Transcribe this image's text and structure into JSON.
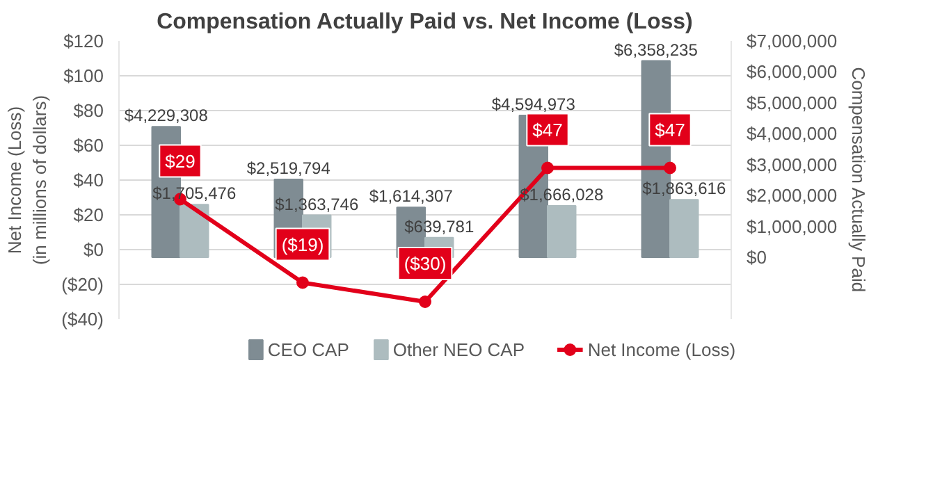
{
  "chart_data": {
    "type": "bar",
    "title": "Compensation Actually Paid vs. Net Income (Loss)",
    "ylabel": "Net Income (Loss)\n(in millions of dollars)",
    "y2label": "Compensation Actually Paid",
    "categories": [
      null,
      null,
      null,
      null,
      null
    ],
    "ylim": [
      -40,
      120
    ],
    "yticks": [
      {
        "value": -40,
        "label": "($40)"
      },
      {
        "value": -20,
        "label": "($20)"
      },
      {
        "value": 0,
        "label": "$0"
      },
      {
        "value": 20,
        "label": "$20"
      },
      {
        "value": 40,
        "label": "$40"
      },
      {
        "value": 60,
        "label": "$60"
      },
      {
        "value": 80,
        "label": "$80"
      },
      {
        "value": 100,
        "label": "$100"
      },
      {
        "value": 120,
        "label": "$120"
      }
    ],
    "y2lim": [
      -2000000,
      7000000
    ],
    "y2ticks": [
      {
        "value": 0,
        "label": "$0"
      },
      {
        "value": 1000000,
        "label": "$1,000,000"
      },
      {
        "value": 2000000,
        "label": "$2,000,000"
      },
      {
        "value": 3000000,
        "label": "$3,000,000"
      },
      {
        "value": 4000000,
        "label": "$4,000,000"
      },
      {
        "value": 5000000,
        "label": "$5,000,000"
      },
      {
        "value": 6000000,
        "label": "$6,000,000"
      },
      {
        "value": 7000000,
        "label": "$7,000,000"
      }
    ],
    "grid": "y",
    "legend": "bottom",
    "series": [
      {
        "name": "CEO CAP",
        "axis": "y2",
        "color": "#7f8c93",
        "values": [
          4229308,
          2519794,
          1614307,
          4594973,
          6358235
        ],
        "value_labels": [
          "$4,229,308",
          "$2,519,794",
          "$1,614,307",
          "$4,594,973",
          "$6,358,235"
        ]
      },
      {
        "name": "Other NEO CAP",
        "axis": "y2",
        "color": "#adbcbf",
        "values": [
          1705476,
          1363746,
          639781,
          1666028,
          1863616
        ],
        "value_labels": [
          "$1,705,476",
          "$1,363,746",
          "$639,781",
          "$1,666,028",
          "$1,863,616"
        ]
      },
      {
        "name": "Net Income (Loss)",
        "type": "line",
        "color": "#e2001a",
        "marker": "circle",
        "values": [
          29,
          -19,
          -30,
          47,
          47
        ],
        "value_labels": [
          "$29",
          "($19)",
          "($30)",
          "$47",
          "$47"
        ]
      }
    ]
  }
}
